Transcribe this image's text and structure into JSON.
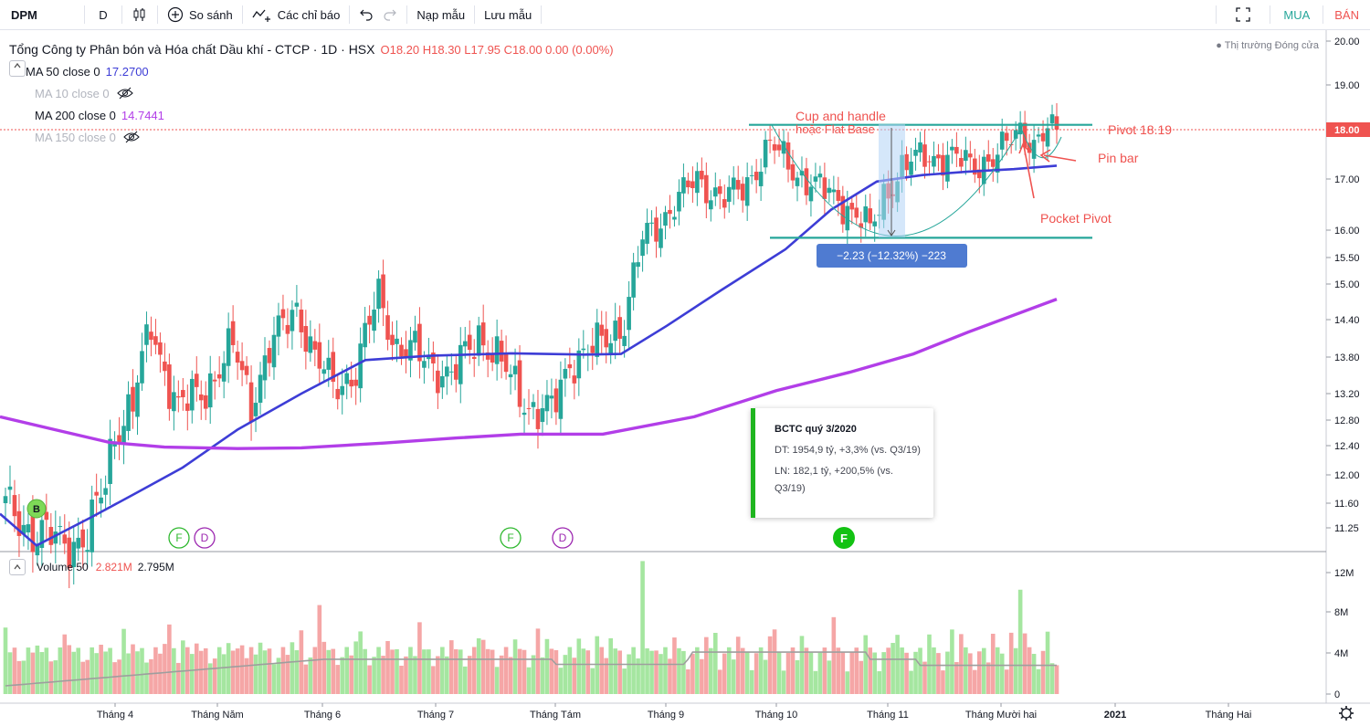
{
  "toolbar": {
    "symbol": "DPM",
    "interval": "D",
    "compare_label": "So sánh",
    "indicators_label": "Các chỉ báo",
    "load_template_label": "Nạp mẫu",
    "save_template_label": "Lưu mẫu",
    "buy_label": "MUA",
    "sell_label": "BÁN"
  },
  "legend": {
    "title": "Tổng Công ty Phân bón và Hóa chất Dầu khí - CTCP · 1D · HSX",
    "ohlc": "O18.20 H18.30 L17.95 C18.00 0.00 (0.00%)",
    "ma": [
      {
        "label": "MA 50 close 0",
        "value": "17.2700",
        "color": "#3d3dd6",
        "hidden": false
      },
      {
        "label": "MA 10 close 0",
        "value": "",
        "color": "#b2b5be",
        "hidden": true
      },
      {
        "label": "MA 200 close 0",
        "value": "14.7441",
        "color": "#b23ee8",
        "hidden": false
      },
      {
        "label": "MA 150 close 0",
        "value": "",
        "color": "#b2b5be",
        "hidden": true
      }
    ],
    "market_status": "Thị trường Đóng cửa"
  },
  "volume_legend": {
    "label": "Volume 50",
    "value1": "2.821M",
    "value2": "2.795M"
  },
  "annotations": {
    "cup_line1": "Cup and handle",
    "cup_line2": "hoặc Flat Base",
    "pivot": "Pivot 18.19",
    "pin_bar": "Pin bar",
    "pocket_pivot": "Pocket Pivot",
    "measure": "−2.23 (−12.32%) −223"
  },
  "tooltip": {
    "title": "BCTC quý 3/2020",
    "line1": "DT: 1954,9 tỷ, +3,3% (vs. Q3/19)",
    "line2": "LN: 182,1 tỷ, +200,5% (vs. Q3/19)"
  },
  "markers": [
    {
      "letter": "B",
      "type": "buy"
    },
    {
      "letter": "F",
      "type": "earnings"
    },
    {
      "letter": "D",
      "type": "dividend"
    },
    {
      "letter": "F",
      "type": "earnings"
    },
    {
      "letter": "D",
      "type": "dividend"
    },
    {
      "letter": "F",
      "type": "earnings-active"
    }
  ],
  "colors": {
    "up": "#26a69a",
    "down": "#ef5350",
    "ma50": "#3d3dd6",
    "ma200": "#b23ee8",
    "vol_up": "#a5e6a0",
    "vol_down": "#f5a6a6",
    "pivot_line": "#26a69a",
    "annotation": "#ef5350"
  },
  "chart_data": {
    "type": "candlestick",
    "price_axis": {
      "ticks": [
        "20.00",
        "19.00",
        "18.00",
        "17.00",
        "16.00",
        "15.50",
        "15.00",
        "14.40",
        "13.80",
        "13.20",
        "12.80",
        "12.40",
        "12.00",
        "11.60",
        "11.25"
      ],
      "current": "18.00"
    },
    "volume_axis": {
      "ticks": [
        "12M",
        "8M",
        "4M",
        "0"
      ]
    },
    "x_axis": {
      "ticks": [
        "Tháng 4",
        "Tháng Năm",
        "Tháng 6",
        "Tháng 7",
        "Tháng Tám",
        "Tháng 9",
        "Tháng 10",
        "Tháng 11",
        "Tháng Mười hai",
        "2021",
        "Tháng Hai"
      ]
    },
    "last_close": 18.0,
    "pivot_level": 18.19,
    "base_low": 15.86,
    "ma50_last": 17.27,
    "ma200_last": 14.7441,
    "volume_ma_last": 2.795,
    "volume_last": 2.821
  }
}
